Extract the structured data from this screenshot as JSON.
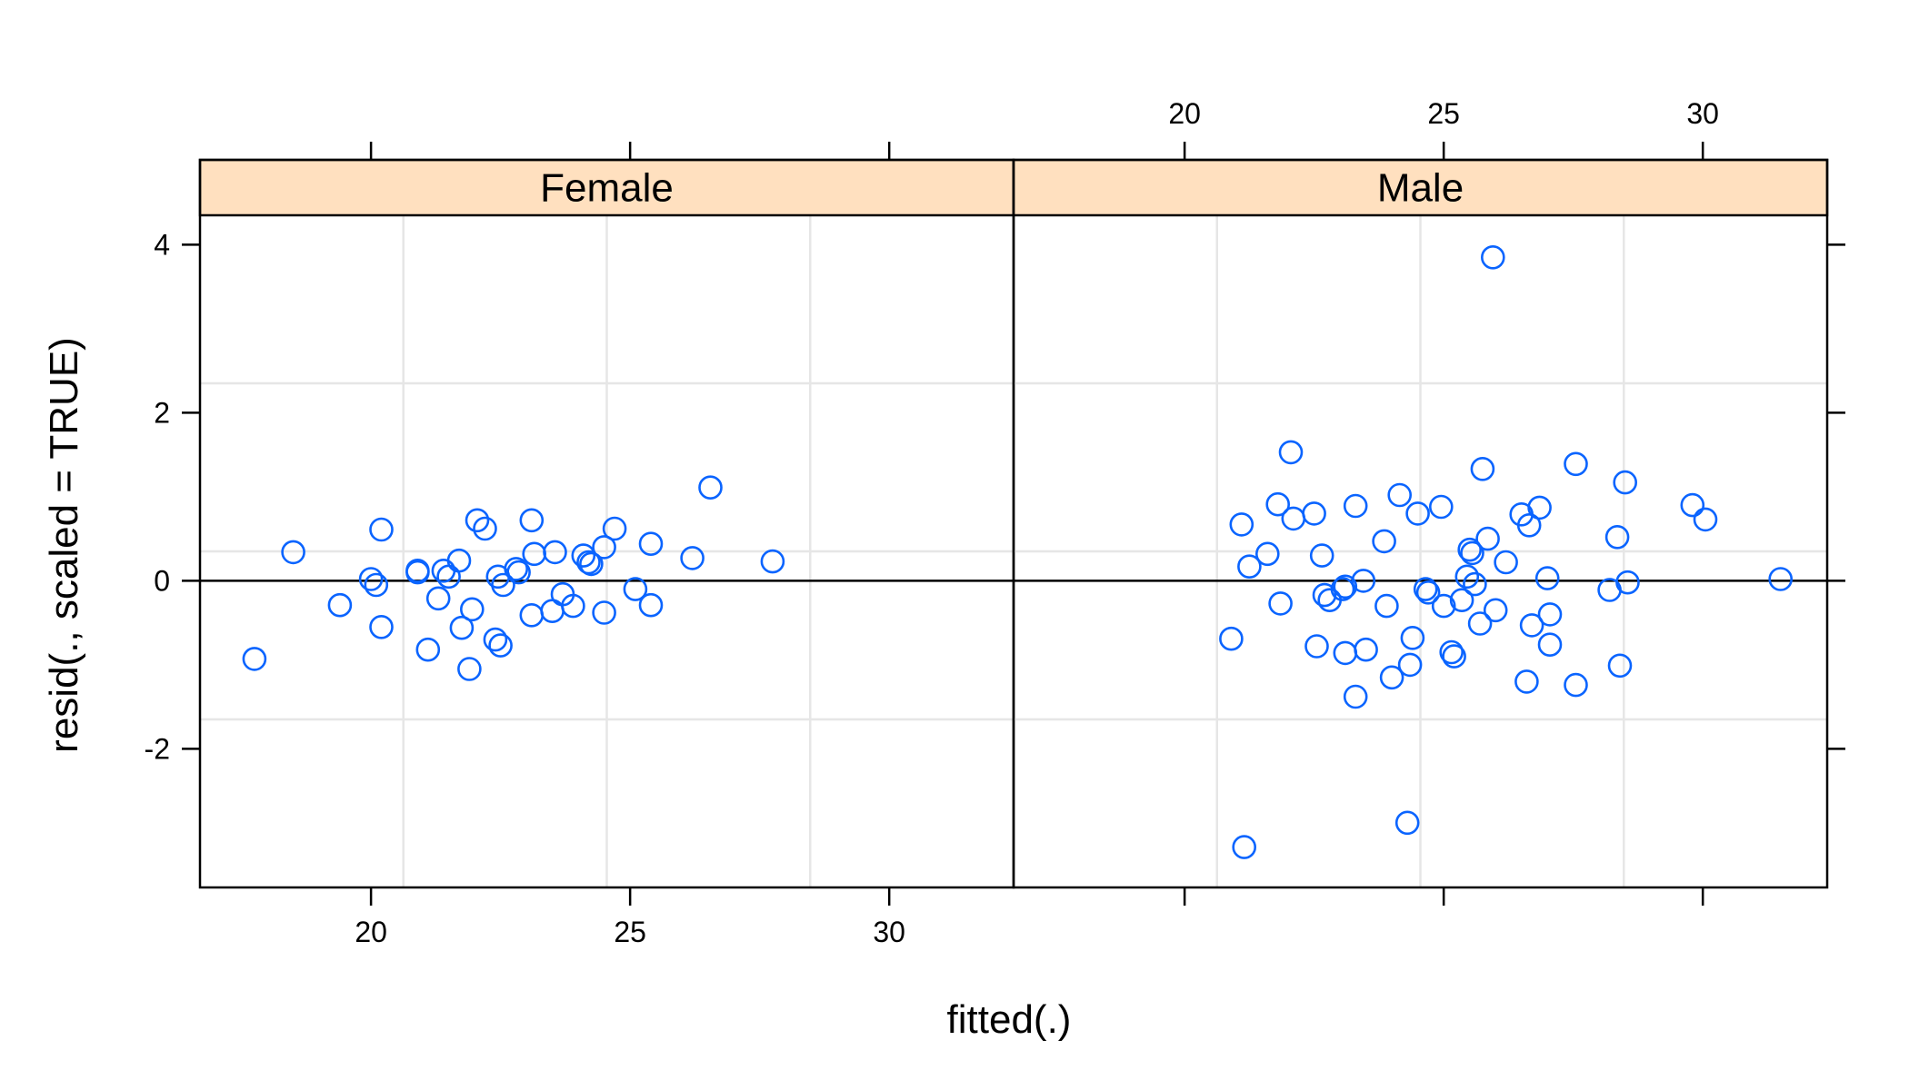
{
  "chart_data": {
    "type": "scatter",
    "xlabel": "fitted(.)",
    "ylabel": "resid(., scaled = TRUE)",
    "xlim": [
      16.7,
      32.4
    ],
    "ylim": [
      -3.65,
      4.35
    ],
    "xticks": [
      20,
      25,
      30
    ],
    "yticks": [
      -2,
      0,
      2,
      4
    ],
    "reference_line_y": 0,
    "grid": true,
    "strip_color": "#ffe0bf",
    "point_color": "#0a64ff",
    "panels": [
      {
        "name": "Female",
        "points": [
          [
            17.75,
            -0.93
          ],
          [
            18.5,
            0.34
          ],
          [
            19.4,
            -0.29
          ],
          [
            20.0,
            0.02
          ],
          [
            20.1,
            -0.05
          ],
          [
            20.2,
            0.61
          ],
          [
            20.2,
            -0.55
          ],
          [
            20.9,
            0.12
          ],
          [
            20.9,
            0.1
          ],
          [
            21.1,
            -0.82
          ],
          [
            21.3,
            -0.21
          ],
          [
            21.4,
            0.12
          ],
          [
            21.5,
            0.05
          ],
          [
            21.7,
            0.24
          ],
          [
            21.75,
            -0.56
          ],
          [
            21.9,
            -1.05
          ],
          [
            21.95,
            -0.34
          ],
          [
            22.05,
            0.72
          ],
          [
            22.2,
            0.62
          ],
          [
            22.4,
            -0.7
          ],
          [
            22.45,
            0.05
          ],
          [
            22.5,
            -0.77
          ],
          [
            22.55,
            -0.05
          ],
          [
            22.8,
            0.14
          ],
          [
            22.85,
            0.1
          ],
          [
            23.1,
            -0.41
          ],
          [
            23.1,
            0.72
          ],
          [
            23.15,
            0.32
          ],
          [
            23.5,
            -0.36
          ],
          [
            23.55,
            0.34
          ],
          [
            23.7,
            -0.16
          ],
          [
            23.9,
            -0.3
          ],
          [
            24.1,
            0.3
          ],
          [
            24.2,
            0.22
          ],
          [
            24.25,
            0.2
          ],
          [
            24.5,
            0.4
          ],
          [
            24.5,
            -0.38
          ],
          [
            24.7,
            0.62
          ],
          [
            25.1,
            -0.1
          ],
          [
            25.4,
            0.44
          ],
          [
            25.4,
            -0.29
          ],
          [
            26.2,
            0.27
          ],
          [
            26.55,
            1.11
          ],
          [
            27.75,
            0.23
          ]
        ]
      },
      {
        "name": "Male",
        "points": [
          [
            20.9,
            -0.69
          ],
          [
            21.1,
            0.67
          ],
          [
            21.15,
            -3.17
          ],
          [
            21.25,
            0.17
          ],
          [
            21.6,
            0.32
          ],
          [
            21.8,
            0.91
          ],
          [
            21.85,
            -0.27
          ],
          [
            22.05,
            1.53
          ],
          [
            22.1,
            0.74
          ],
          [
            22.5,
            0.8
          ],
          [
            22.55,
            -0.78
          ],
          [
            22.65,
            0.3
          ],
          [
            22.7,
            -0.17
          ],
          [
            22.8,
            -0.23
          ],
          [
            23.05,
            -0.1
          ],
          [
            23.1,
            -0.07
          ],
          [
            23.1,
            -0.86
          ],
          [
            23.3,
            0.89
          ],
          [
            23.3,
            -1.38
          ],
          [
            23.45,
            0.0
          ],
          [
            23.5,
            -0.82
          ],
          [
            23.85,
            0.47
          ],
          [
            23.9,
            -0.3
          ],
          [
            24.0,
            -1.15
          ],
          [
            24.15,
            1.02
          ],
          [
            24.3,
            -2.88
          ],
          [
            24.35,
            -1.0
          ],
          [
            24.4,
            -0.68
          ],
          [
            24.5,
            0.8
          ],
          [
            24.65,
            -0.1
          ],
          [
            24.7,
            -0.14
          ],
          [
            24.95,
            0.88
          ],
          [
            25.0,
            -0.3
          ],
          [
            25.15,
            -0.85
          ],
          [
            25.2,
            -0.9
          ],
          [
            25.35,
            -0.23
          ],
          [
            25.45,
            0.05
          ],
          [
            25.5,
            0.37
          ],
          [
            25.55,
            0.33
          ],
          [
            25.6,
            -0.04
          ],
          [
            25.7,
            -0.51
          ],
          [
            25.75,
            1.33
          ],
          [
            25.85,
            0.5
          ],
          [
            25.95,
            3.85
          ],
          [
            26.0,
            -0.35
          ],
          [
            26.2,
            0.22
          ],
          [
            26.5,
            0.79
          ],
          [
            26.6,
            -1.2
          ],
          [
            26.65,
            0.66
          ],
          [
            26.7,
            -0.53
          ],
          [
            26.85,
            0.87
          ],
          [
            27.0,
            0.03
          ],
          [
            27.05,
            -0.76
          ],
          [
            27.05,
            -0.4
          ],
          [
            27.55,
            1.39
          ],
          [
            27.55,
            -1.24
          ],
          [
            28.2,
            -0.11
          ],
          [
            28.35,
            0.52
          ],
          [
            28.4,
            -1.01
          ],
          [
            28.5,
            1.17
          ],
          [
            28.55,
            -0.02
          ],
          [
            29.8,
            0.9
          ],
          [
            30.05,
            0.73
          ],
          [
            31.5,
            0.02
          ]
        ]
      }
    ]
  }
}
